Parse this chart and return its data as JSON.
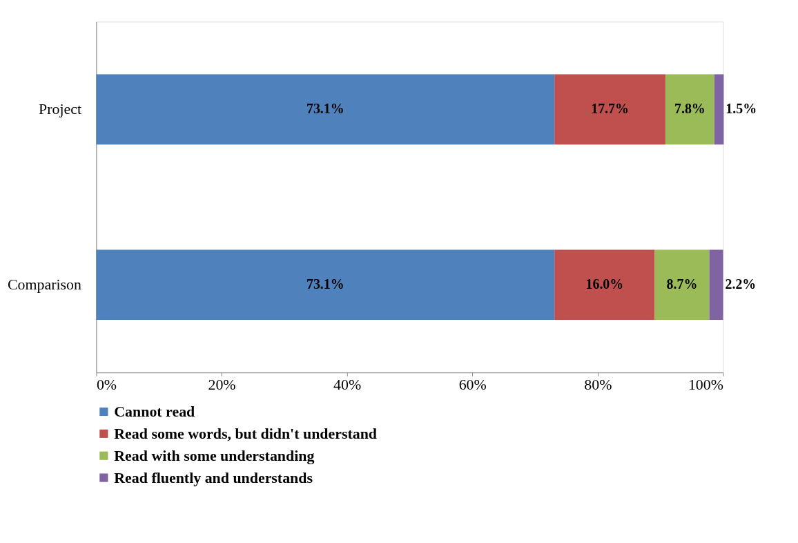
{
  "chart_data": {
    "type": "bar",
    "orientation": "horizontal",
    "stacked": true,
    "categories": [
      "Project",
      "Comparison"
    ],
    "series": [
      {
        "name": "Cannot read",
        "color": "#4f81bd",
        "values": [
          73.1,
          73.1
        ],
        "value_labels": [
          "73.1%",
          "73.1%"
        ]
      },
      {
        "name": "Read some words, but didn't understand",
        "color": "#c0504d",
        "values": [
          17.7,
          16.0
        ],
        "value_labels": [
          "17.7%",
          "16.0%"
        ]
      },
      {
        "name": "Read with some understanding",
        "color": "#9bbb59",
        "values": [
          7.8,
          8.7
        ],
        "value_labels": [
          "7.8%",
          "8.7%"
        ]
      },
      {
        "name": "Read fluently and understands",
        "color": "#8064a2",
        "values": [
          1.5,
          2.2
        ],
        "value_labels": [
          "1.5%",
          "2.2%"
        ]
      }
    ],
    "xlim": [
      0,
      100
    ],
    "xticks": [
      {
        "value": 0,
        "label": "0%"
      },
      {
        "value": 20,
        "label": "20%"
      },
      {
        "value": 40,
        "label": "40%"
      },
      {
        "value": 60,
        "label": "60%"
      },
      {
        "value": 80,
        "label": "80%"
      },
      {
        "value": 100,
        "label": "100%"
      }
    ],
    "grid": false,
    "legend": "bottom"
  }
}
